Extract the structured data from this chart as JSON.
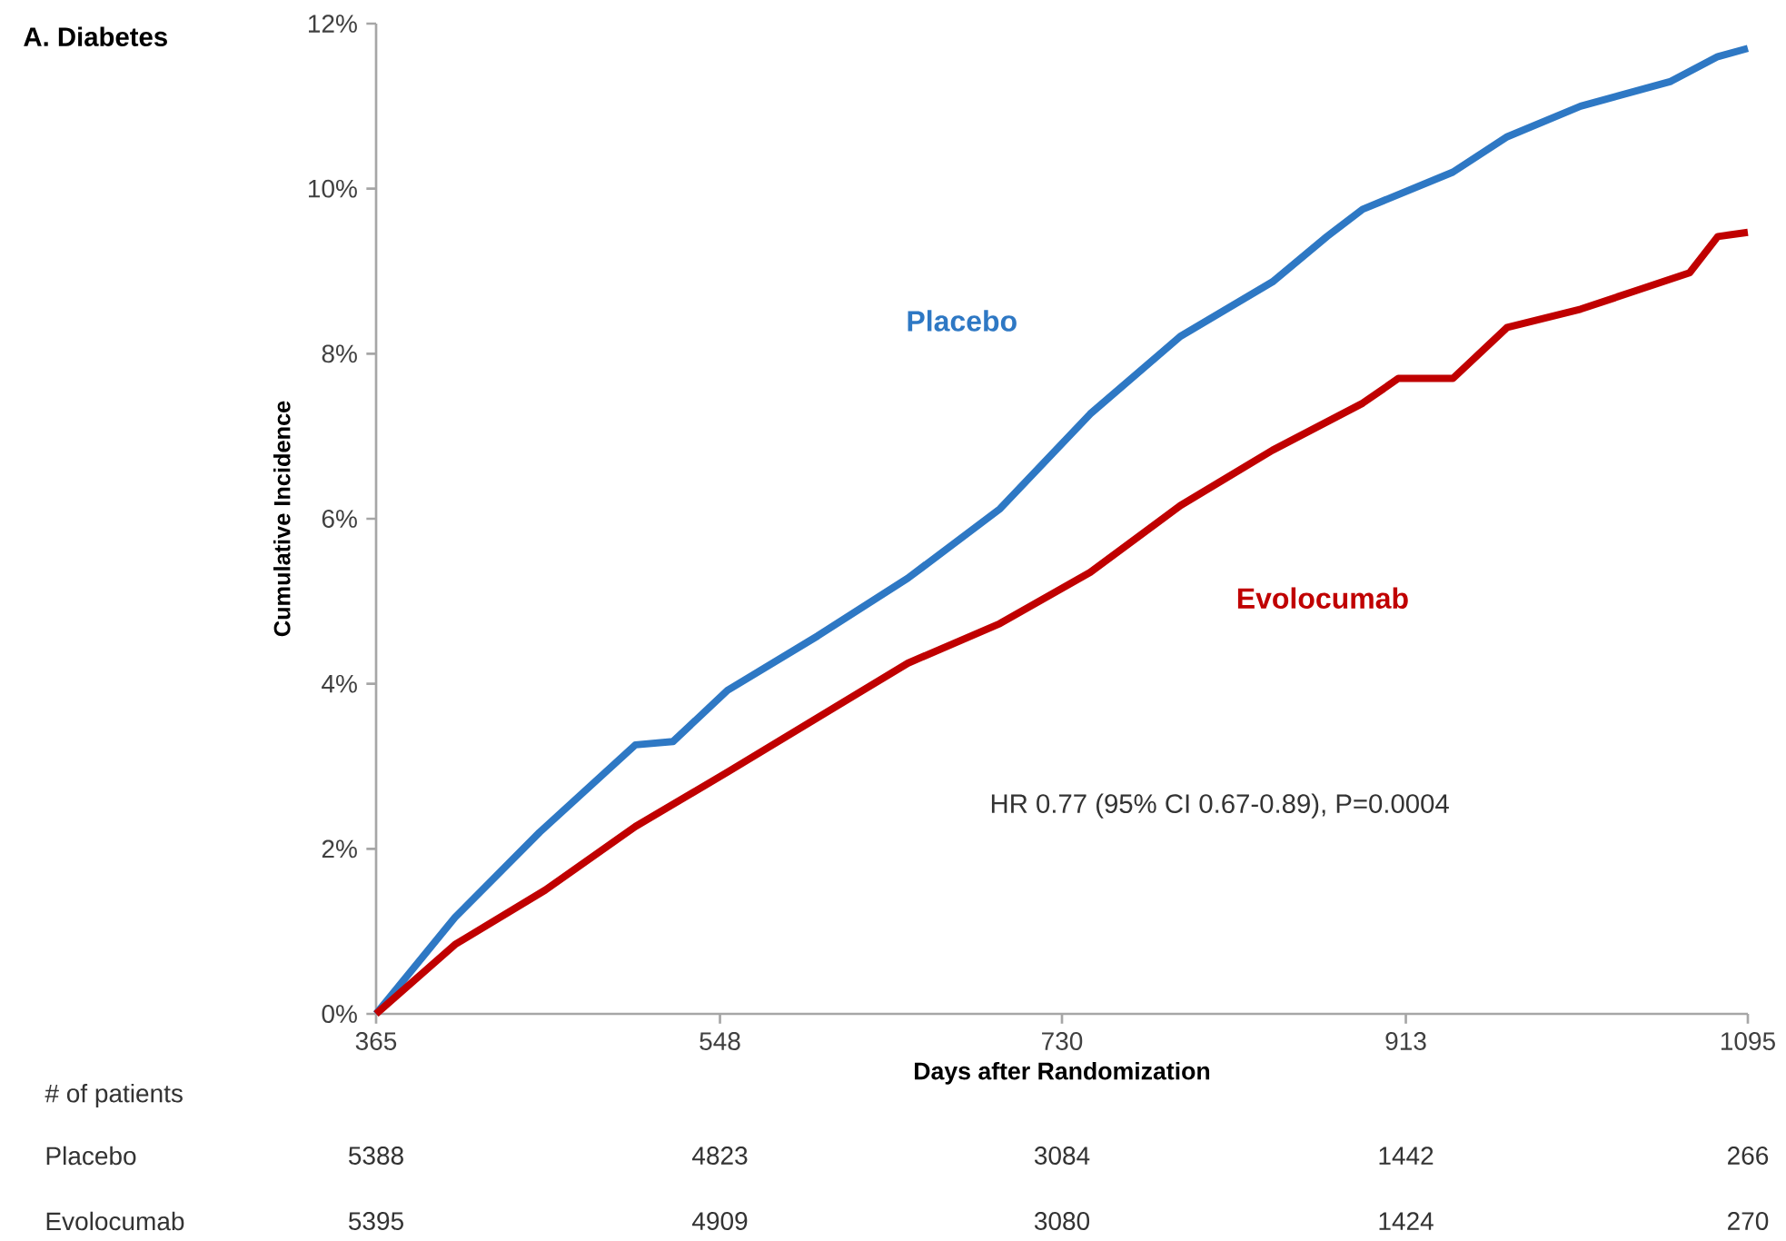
{
  "chart_data": {
    "type": "line",
    "title": "A. Diabetes",
    "xlabel": "Days after Randomization",
    "ylabel": "Cumulative Incidence",
    "xlim": [
      365,
      1095
    ],
    "xticks": [
      365,
      548,
      730,
      913,
      1095
    ],
    "ylim": [
      0,
      12
    ],
    "yticks": [
      {
        "value": 0,
        "label": "0%"
      },
      {
        "value": 2,
        "label": "2%"
      },
      {
        "value": 4,
        "label": "4%"
      },
      {
        "value": 6,
        "label": "6%"
      },
      {
        "value": 8,
        "label": "8%"
      },
      {
        "value": 10,
        "label": "10%"
      },
      {
        "value": 12,
        "label": "12%"
      }
    ],
    "grid": false,
    "marker": "none",
    "line_style": "solid",
    "series": [
      {
        "name": "Placebo",
        "color": "#2e78c4",
        "x": [
          365,
          407,
          452,
          503,
          523,
          552,
          600,
          648,
          697,
          745,
          793,
          842,
          871,
          890,
          938,
          967,
          1006,
          1054,
          1079,
          1095
        ],
        "values": [
          0,
          1.17,
          2.2,
          3.26,
          3.3,
          3.92,
          4.58,
          5.28,
          6.12,
          7.27,
          8.21,
          8.87,
          9.42,
          9.75,
          10.2,
          10.63,
          11.0,
          11.3,
          11.6,
          11.7
        ]
      },
      {
        "name": "Evolocumab",
        "color": "#c00000",
        "x": [
          365,
          407,
          455,
          503,
          552,
          600,
          648,
          697,
          745,
          793,
          842,
          890,
          909,
          938,
          967,
          1006,
          1035,
          1064,
          1079,
          1095
        ],
        "values": [
          0,
          0.84,
          1.5,
          2.27,
          2.93,
          3.59,
          4.25,
          4.73,
          5.35,
          6.16,
          6.83,
          7.4,
          7.7,
          7.7,
          8.32,
          8.54,
          8.76,
          8.98,
          9.42,
          9.47
        ]
      }
    ],
    "annotations": [
      "HR 0.77 (95% CI 0.67-0.89), P=0.0004",
      "# of patients",
      "Placebo",
      "5388",
      "4823",
      "3084",
      "1442",
      "266",
      "Evolocumab",
      "5395",
      "4909",
      "3080",
      "1424",
      "270"
    ]
  }
}
